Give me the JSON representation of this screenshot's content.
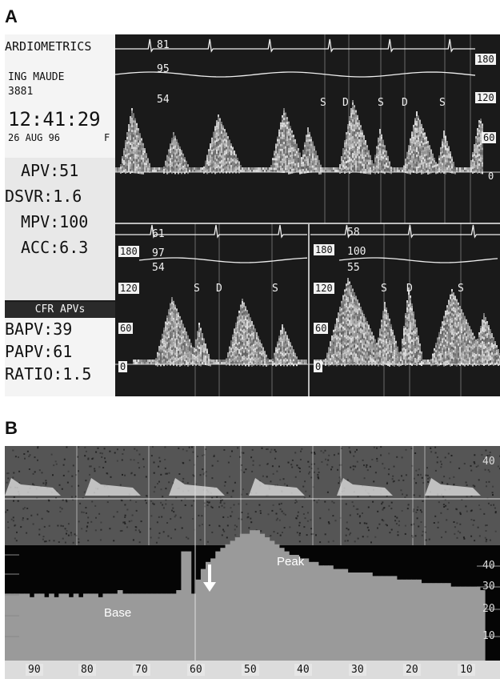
{
  "panels": {
    "a": "A",
    "b": "B"
  },
  "panel_a": {
    "brand": "ARDIOMETRICS",
    "patient_line1": "ING MAUDE",
    "patient_line2": "3881",
    "clock": "12:41:29",
    "date": "26 AUG 96",
    "flag": "F",
    "measures": [
      "APV:51",
      "DSVR:1.6",
      "MPV:100",
      "ACC:6.3"
    ],
    "cfr_header": "CFR APVs",
    "cfr_values": [
      "BAPV:39",
      "PAPV:61",
      "RATIO:1.5"
    ],
    "top_trace": {
      "ecg_labels": [
        "81",
        "95",
        "54"
      ],
      "scale": [
        "180",
        "120",
        "60",
        "0"
      ],
      "markers": [
        "S",
        "D",
        "S",
        "D",
        "S"
      ]
    },
    "baseline_trace": {
      "ecg_labels": [
        "61",
        "97",
        "54"
      ],
      "scale": [
        "180",
        "120",
        "60",
        "0"
      ],
      "markers": [
        "S",
        "D",
        "S"
      ]
    },
    "peak_trace": {
      "ecg_labels": [
        "58",
        "100",
        "55"
      ],
      "scale": [
        "180",
        "120",
        "60",
        "0"
      ],
      "markers": [
        "S",
        "D",
        "S"
      ]
    }
  },
  "panel_b": {
    "base_label": "Base",
    "peak_label": "Peak",
    "x_ticks": [
      "90",
      "80",
      "70",
      "60",
      "50",
      "40",
      "30",
      "20",
      "10"
    ],
    "y_ticks": [
      "40",
      "30",
      "20",
      "10"
    ],
    "trend_values": [
      19,
      19,
      19,
      19,
      19,
      18,
      19,
      19,
      18,
      19,
      18,
      19,
      19,
      18,
      19,
      18,
      19,
      19,
      19,
      18,
      19,
      19,
      19,
      20,
      19,
      19,
      19,
      19,
      19,
      19,
      19,
      19,
      19,
      19,
      19,
      20,
      31,
      31,
      19,
      23,
      26,
      28,
      29,
      31,
      32,
      33,
      34,
      35,
      36,
      36,
      37,
      37,
      36,
      35,
      34,
      33,
      32,
      31,
      30,
      30,
      29,
      29,
      28,
      28,
      27,
      27,
      27,
      26,
      26,
      26,
      25,
      25,
      25,
      25,
      25,
      24,
      24,
      24,
      24,
      24,
      23,
      23,
      23,
      23,
      23,
      22,
      22,
      22,
      22,
      22,
      22,
      21,
      21,
      21,
      21,
      21,
      21,
      20
    ]
  }
}
